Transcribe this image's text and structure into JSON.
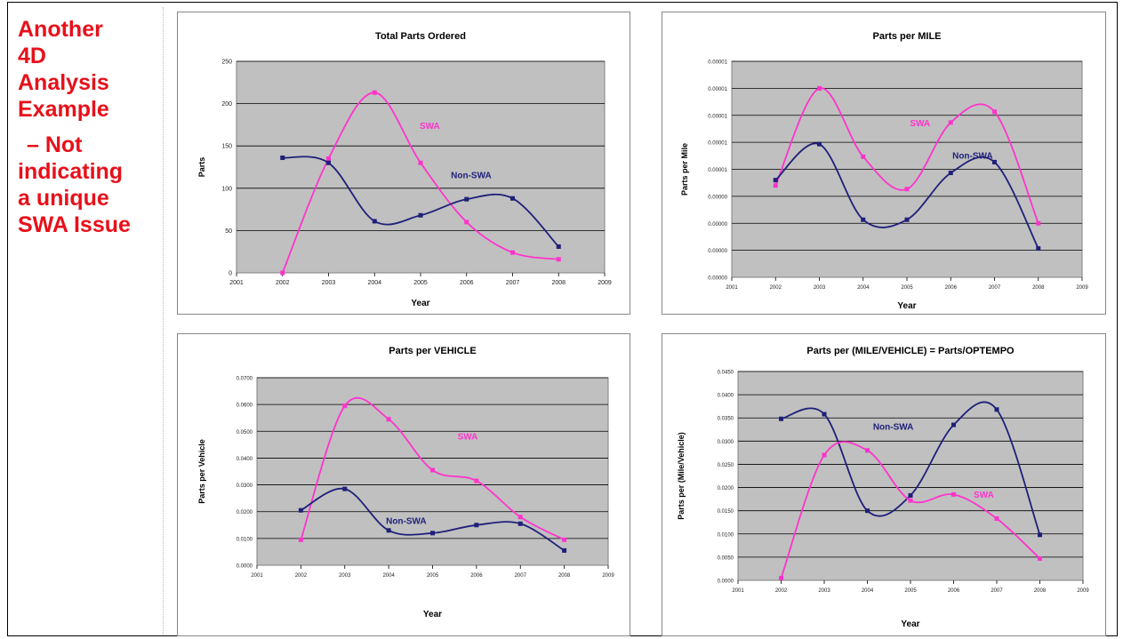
{
  "sidebar": {
    "lines": [
      "Another",
      "4D",
      "Analysis",
      "Example"
    ],
    "sub_lines": [
      "– Not",
      "indicating",
      "a unique",
      "SWA Issue"
    ]
  },
  "colors": {
    "swa": "#ff33cc",
    "non_swa": "#1f1f7a",
    "plot_bg": "#c0c0c0",
    "heading": "#e8101a"
  },
  "chart_data": [
    {
      "type": "line",
      "title": "Total Parts Ordered",
      "xlabel": "Year",
      "ylabel": "Parts",
      "xlim": [
        2001,
        2009
      ],
      "ylim": [
        0,
        250
      ],
      "x_ticks": [
        "2001",
        "2002",
        "2003",
        "2004",
        "2005",
        "2006",
        "2007",
        "2008",
        "2009"
      ],
      "y_ticks": [
        "0",
        "50",
        "100",
        "150",
        "200",
        "250"
      ],
      "grid": true,
      "series": [
        {
          "name": "SWA",
          "color": "#ff33cc",
          "label": "SWA",
          "label_at": [
            2005.2,
            170
          ],
          "x": [
            2002,
            2003,
            2004,
            2005,
            2006,
            2007,
            2008
          ],
          "y": [
            0,
            135,
            213,
            130,
            60,
            24,
            16
          ]
        },
        {
          "name": "Non-SWA",
          "color": "#1f1f7a",
          "label": "Non-SWA",
          "label_at": [
            2006.1,
            112
          ],
          "x": [
            2002,
            2003,
            2004,
            2005,
            2006,
            2007,
            2008
          ],
          "y": [
            136,
            130,
            61,
            68,
            87,
            88,
            31
          ]
        }
      ]
    },
    {
      "type": "line",
      "title": "Parts per MILE",
      "xlabel": "Year",
      "ylabel": "Parts per Mile",
      "xlim": [
        2001,
        2009
      ],
      "ylim": [
        0,
        6
      ],
      "x_ticks": [
        "2001",
        "2002",
        "2003",
        "2004",
        "2005",
        "2006",
        "2007",
        "2008",
        "2009"
      ],
      "y_ticks": [
        "0.00000",
        "0.00000",
        "0.00000",
        "0.00000",
        "0.00001",
        "0.00001",
        "0.00001",
        "0.00001",
        "0.00001"
      ],
      "y_tick_values": [
        0,
        0.75,
        1.5,
        2.25,
        3,
        3.75,
        4.5,
        5.25,
        6
      ],
      "grid": true,
      "series": [
        {
          "name": "SWA",
          "color": "#ff33cc",
          "label": "SWA",
          "label_at": [
            2005.3,
            4.2
          ],
          "x": [
            2002,
            2003,
            2004,
            2005,
            2006,
            2007,
            2008
          ],
          "y": [
            2.55,
            5.25,
            3.35,
            2.45,
            4.3,
            4.6,
            1.5
          ]
        },
        {
          "name": "Non-SWA",
          "color": "#1f1f7a",
          "label": "Non-SWA",
          "label_at": [
            2006.5,
            3.3
          ],
          "x": [
            2002,
            2003,
            2004,
            2005,
            2006,
            2007,
            2008
          ],
          "y": [
            2.7,
            3.7,
            1.6,
            1.6,
            2.9,
            3.2,
            0.8
          ]
        }
      ]
    },
    {
      "type": "line",
      "title": "Parts per VEHICLE",
      "xlabel": "Year",
      "ylabel": "Parts per Vehicle",
      "xlim": [
        2001,
        2009
      ],
      "ylim": [
        0,
        0.07
      ],
      "x_ticks": [
        "2001",
        "2002",
        "2003",
        "2004",
        "2005",
        "2006",
        "2007",
        "2008",
        "2009"
      ],
      "y_ticks": [
        "0.0000",
        "0.0100",
        "0.0200",
        "0.0300",
        "0.0400",
        "0.0500",
        "0.0600",
        "0.0700"
      ],
      "grid": true,
      "series": [
        {
          "name": "SWA",
          "color": "#ff33cc",
          "label": "SWA",
          "label_at": [
            2005.8,
            0.047
          ],
          "x": [
            2002,
            2003,
            2004,
            2005,
            2006,
            2007,
            2008
          ],
          "y": [
            0.0095,
            0.0595,
            0.0545,
            0.0355,
            0.0315,
            0.018,
            0.0095
          ]
        },
        {
          "name": "Non-SWA",
          "color": "#1f1f7a",
          "label": "Non-SWA",
          "label_at": [
            2004.4,
            0.0155
          ],
          "x": [
            2002,
            2003,
            2004,
            2005,
            2006,
            2007,
            2008
          ],
          "y": [
            0.0205,
            0.0285,
            0.013,
            0.012,
            0.015,
            0.0155,
            0.0055
          ]
        }
      ]
    },
    {
      "type": "line",
      "title": "Parts per (MILE/VEHICLE) = Parts/OPTEMPO",
      "xlabel": "Year",
      "ylabel": "Parts per (Mile/Vehicle)",
      "xlim": [
        2001,
        2009
      ],
      "ylim": [
        0,
        0.045
      ],
      "x_ticks": [
        "2001",
        "2002",
        "2003",
        "2004",
        "2005",
        "2006",
        "2007",
        "2008",
        "2009"
      ],
      "y_ticks": [
        "0.0000",
        "0.0050",
        "0.0100",
        "0.0150",
        "0.0200",
        "0.0250",
        "0.0300",
        "0.0350",
        "0.0400",
        "0.0450"
      ],
      "grid": true,
      "series": [
        {
          "name": "Non-SWA",
          "color": "#1f1f7a",
          "label": "Non-SWA",
          "label_at": [
            2004.6,
            0.0325
          ],
          "x": [
            2002,
            2003,
            2004,
            2005,
            2006,
            2007,
            2008
          ],
          "y": [
            0.0348,
            0.0358,
            0.015,
            0.0183,
            0.0335,
            0.0368,
            0.0098
          ]
        },
        {
          "name": "SWA",
          "color": "#ff33cc",
          "label": "SWA",
          "label_at": [
            2006.7,
            0.0178
          ],
          "x": [
            2002,
            2003,
            2004,
            2005,
            2006,
            2007,
            2008
          ],
          "y": [
            0.0005,
            0.027,
            0.028,
            0.0172,
            0.0185,
            0.0133,
            0.0047
          ]
        }
      ]
    }
  ]
}
